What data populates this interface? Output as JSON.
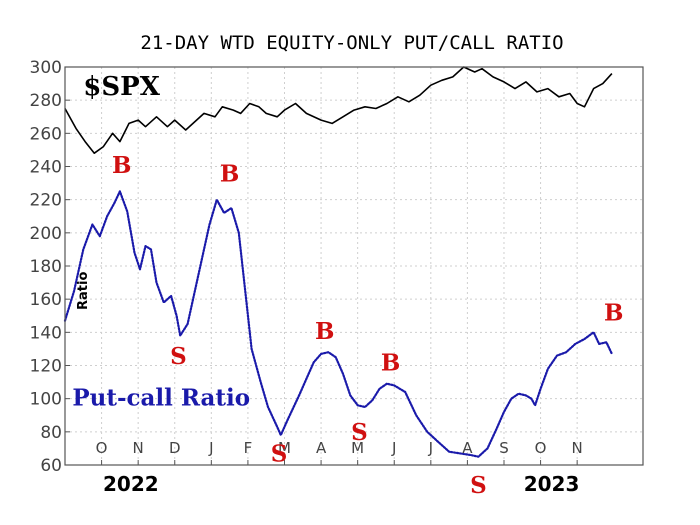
{
  "chart_data": {
    "type": "line",
    "title": "21-DAY WTD EQUITY-ONLY PUT/CALL RATIO",
    "ylabel": "Ratio",
    "ylim": [
      60,
      300
    ],
    "yticks": [
      60,
      80,
      100,
      120,
      140,
      160,
      180,
      200,
      220,
      240,
      260,
      280,
      300
    ],
    "xlim": [
      0,
      15.8
    ],
    "xticks": [
      {
        "label": "O",
        "x": 1
      },
      {
        "label": "N",
        "x": 2
      },
      {
        "label": "D",
        "x": 3
      },
      {
        "label": "J",
        "x": 4
      },
      {
        "label": "F",
        "x": 5
      },
      {
        "label": "M",
        "x": 6
      },
      {
        "label": "A",
        "x": 7
      },
      {
        "label": "M",
        "x": 8
      },
      {
        "label": "J",
        "x": 9
      },
      {
        "label": "J",
        "x": 10
      },
      {
        "label": "A",
        "x": 11
      },
      {
        "label": "S",
        "x": 12
      },
      {
        "label": "O",
        "x": 13
      },
      {
        "label": "N",
        "x": 14
      }
    ],
    "years": [
      {
        "label": "2022",
        "x": 1.8
      },
      {
        "label": "2023",
        "x": 13.3
      }
    ],
    "grid": true,
    "series": [
      {
        "name": "$SPX",
        "color": "#000000",
        "style": "solid",
        "points": [
          [
            0,
            275
          ],
          [
            0.3,
            263
          ],
          [
            0.55,
            255
          ],
          [
            0.8,
            248
          ],
          [
            1.05,
            252
          ],
          [
            1.3,
            260
          ],
          [
            1.5,
            255
          ],
          [
            1.75,
            266
          ],
          [
            2.0,
            268
          ],
          [
            2.2,
            264
          ],
          [
            2.5,
            270
          ],
          [
            2.8,
            264
          ],
          [
            3.0,
            268
          ],
          [
            3.3,
            262
          ],
          [
            3.5,
            266
          ],
          [
            3.8,
            272
          ],
          [
            4.1,
            270
          ],
          [
            4.3,
            276
          ],
          [
            4.6,
            274
          ],
          [
            4.8,
            272
          ],
          [
            5.05,
            278
          ],
          [
            5.3,
            276
          ],
          [
            5.5,
            272
          ],
          [
            5.8,
            270
          ],
          [
            6.0,
            274
          ],
          [
            6.3,
            278
          ],
          [
            6.6,
            272
          ],
          [
            7.0,
            268
          ],
          [
            7.3,
            266
          ],
          [
            7.6,
            270
          ],
          [
            7.9,
            274
          ],
          [
            8.2,
            276
          ],
          [
            8.5,
            275
          ],
          [
            8.8,
            278
          ],
          [
            9.1,
            282
          ],
          [
            9.4,
            279
          ],
          [
            9.7,
            283
          ],
          [
            10.0,
            289
          ],
          [
            10.3,
            292
          ],
          [
            10.6,
            294
          ],
          [
            10.9,
            300
          ],
          [
            11.2,
            297
          ],
          [
            11.4,
            299
          ],
          [
            11.7,
            294
          ],
          [
            12.0,
            291
          ],
          [
            12.3,
            287
          ],
          [
            12.6,
            291
          ],
          [
            12.9,
            285
          ],
          [
            13.2,
            287
          ],
          [
            13.5,
            282
          ],
          [
            13.8,
            284
          ],
          [
            14.0,
            278
          ],
          [
            14.2,
            276
          ],
          [
            14.45,
            287
          ],
          [
            14.7,
            290
          ],
          [
            14.95,
            296
          ]
        ]
      },
      {
        "name": "Put-call Ratio",
        "color": "#1a1aaa",
        "style": "dotted",
        "points": [
          [
            0,
            147
          ],
          [
            0.25,
            165
          ],
          [
            0.5,
            190
          ],
          [
            0.75,
            205
          ],
          [
            0.95,
            198
          ],
          [
            1.15,
            210
          ],
          [
            1.35,
            218
          ],
          [
            1.5,
            225
          ],
          [
            1.7,
            213
          ],
          [
            1.9,
            188
          ],
          [
            2.05,
            178
          ],
          [
            2.2,
            192
          ],
          [
            2.35,
            190
          ],
          [
            2.5,
            170
          ],
          [
            2.7,
            158
          ],
          [
            2.9,
            162
          ],
          [
            3.05,
            150
          ],
          [
            3.15,
            138
          ],
          [
            3.35,
            145
          ],
          [
            3.6,
            170
          ],
          [
            3.8,
            190
          ],
          [
            3.95,
            205
          ],
          [
            4.15,
            220
          ],
          [
            4.35,
            212
          ],
          [
            4.55,
            215
          ],
          [
            4.75,
            200
          ],
          [
            4.9,
            170
          ],
          [
            5.1,
            130
          ],
          [
            5.35,
            110
          ],
          [
            5.55,
            95
          ],
          [
            5.8,
            83
          ],
          [
            5.9,
            78
          ],
          [
            6.1,
            88
          ],
          [
            6.4,
            102
          ],
          [
            6.6,
            112
          ],
          [
            6.8,
            122
          ],
          [
            7.0,
            127
          ],
          [
            7.2,
            128
          ],
          [
            7.4,
            125
          ],
          [
            7.6,
            115
          ],
          [
            7.8,
            102
          ],
          [
            8.0,
            96
          ],
          [
            8.2,
            95
          ],
          [
            8.4,
            99
          ],
          [
            8.6,
            106
          ],
          [
            8.8,
            109
          ],
          [
            9.0,
            108
          ],
          [
            9.3,
            104
          ],
          [
            9.6,
            90
          ],
          [
            9.9,
            80
          ],
          [
            10.2,
            74
          ],
          [
            10.5,
            68
          ],
          [
            10.8,
            67
          ],
          [
            11.1,
            66
          ],
          [
            11.3,
            65
          ],
          [
            11.55,
            70
          ],
          [
            11.8,
            82
          ],
          [
            12.0,
            92
          ],
          [
            12.2,
            100
          ],
          [
            12.4,
            103
          ],
          [
            12.6,
            102
          ],
          [
            12.75,
            100
          ],
          [
            12.85,
            96
          ],
          [
            13.0,
            106
          ],
          [
            13.2,
            118
          ],
          [
            13.45,
            126
          ],
          [
            13.7,
            128
          ],
          [
            13.95,
            133
          ],
          [
            14.2,
            136
          ],
          [
            14.45,
            140
          ],
          [
            14.6,
            133
          ],
          [
            14.8,
            134
          ],
          [
            14.95,
            127
          ]
        ]
      }
    ],
    "annotations": [
      {
        "text": "$SPX",
        "x": 0.5,
        "y": 283,
        "kind": "series-label"
      },
      {
        "text": "Put-call Ratio",
        "x": 0.2,
        "y": 96,
        "kind": "series-label"
      },
      {
        "text": "B",
        "x": 1.55,
        "y": 236,
        "kind": "signal"
      },
      {
        "text": "S",
        "x": 3.1,
        "y": 121,
        "kind": "signal"
      },
      {
        "text": "B",
        "x": 4.5,
        "y": 231,
        "kind": "signal"
      },
      {
        "text": "S",
        "x": 5.85,
        "y": 62,
        "kind": "signal"
      },
      {
        "text": "B",
        "x": 7.1,
        "y": 136,
        "kind": "signal"
      },
      {
        "text": "S",
        "x": 8.05,
        "y": 75,
        "kind": "signal"
      },
      {
        "text": "B",
        "x": 8.9,
        "y": 117,
        "kind": "signal"
      },
      {
        "text": "S",
        "x": 11.3,
        "y": 43,
        "kind": "signal"
      },
      {
        "text": "B",
        "x": 15.0,
        "y": 147,
        "kind": "signal"
      }
    ]
  }
}
